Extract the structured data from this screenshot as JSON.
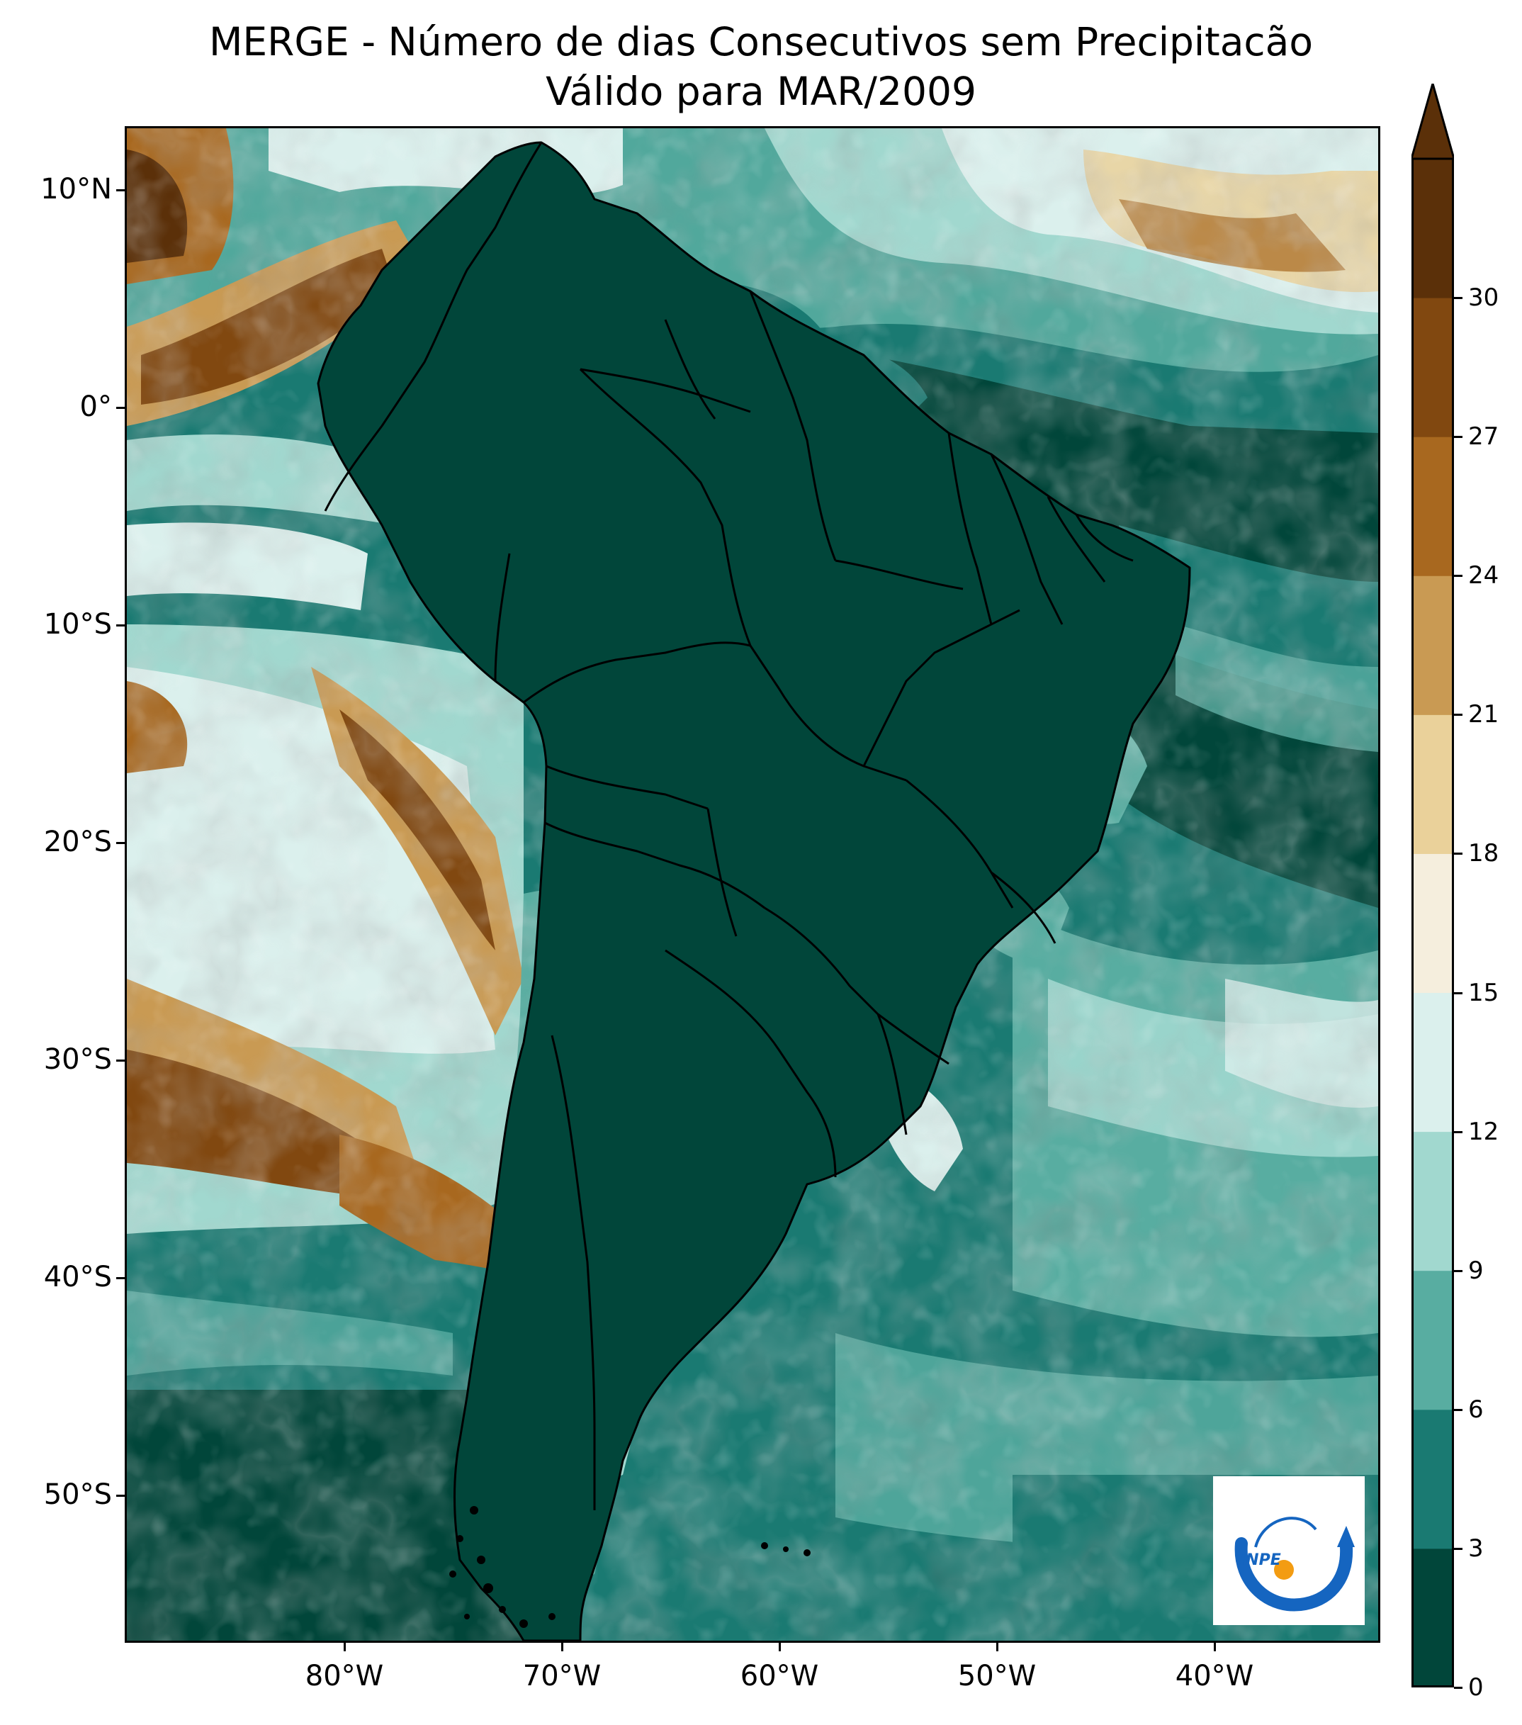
{
  "title": {
    "line1": "MERGE - Número de dias Consecutivos sem Precipitacão",
    "line2": "Válido para MAR/2009"
  },
  "map": {
    "lat_labels": [
      "10°N",
      "0°",
      "10°S",
      "20°S",
      "30°S",
      "40°S",
      "50°S"
    ],
    "lon_labels": [
      "80°W",
      "70°W",
      "60°W",
      "50°W",
      "40°W"
    ],
    "lon_range": [
      -89,
      -31
    ],
    "lat_range": [
      -57,
      13
    ]
  },
  "colorbar": {
    "ticks": [
      "0",
      "3",
      "6",
      "9",
      "12",
      "15",
      "18",
      "21",
      "24",
      "27",
      "30"
    ],
    "colors": [
      "#01463a",
      "#1a7a72",
      "#58ada1",
      "#a1d8cf",
      "#dbf0ed",
      "#f5eedd",
      "#ead19a",
      "#c99a53",
      "#a8681f",
      "#814810",
      "#5b3009"
    ],
    "extend": "max"
  },
  "logo": {
    "text": "INPE",
    "colors": {
      "arc": "#1565c0",
      "dot": "#f39c12"
    }
  }
}
